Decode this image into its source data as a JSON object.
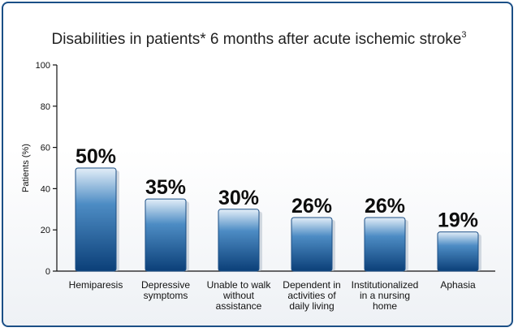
{
  "chart_data": {
    "type": "bar",
    "title": "Disabilities in patients* 6 months after acute ischemic stroke",
    "title_superscript": "3",
    "ylabel": "Patients (%)",
    "xlabel": "",
    "ylim": [
      0,
      100
    ],
    "yticks": [
      0,
      20,
      40,
      60,
      80,
      100
    ],
    "grid": false,
    "categories": [
      "Hemiparesis",
      "Depressive symptoms",
      "Unable to walk without assistance",
      "Dependent in activities of daily living",
      "Institutionalized in a nursing home",
      "Aphasia"
    ],
    "category_lines": [
      [
        "Hemiparesis"
      ],
      [
        "Depressive",
        "symptoms"
      ],
      [
        "Unable to walk",
        "without",
        "assistance"
      ],
      [
        "Dependent in",
        "activities of",
        "daily living"
      ],
      [
        "Institutionalized",
        "in a nursing",
        "home"
      ],
      [
        "Aphasia"
      ]
    ],
    "values": [
      50,
      35,
      30,
      26,
      26,
      19
    ],
    "data_labels": [
      "50%",
      "35%",
      "30%",
      "26%",
      "26%",
      "19%"
    ],
    "colors": {
      "bar_top": "#e3eef8",
      "bar_mid": "#4d8cc4",
      "bar_bottom": "#0b3f78",
      "frame": "#1b4f86"
    }
  }
}
